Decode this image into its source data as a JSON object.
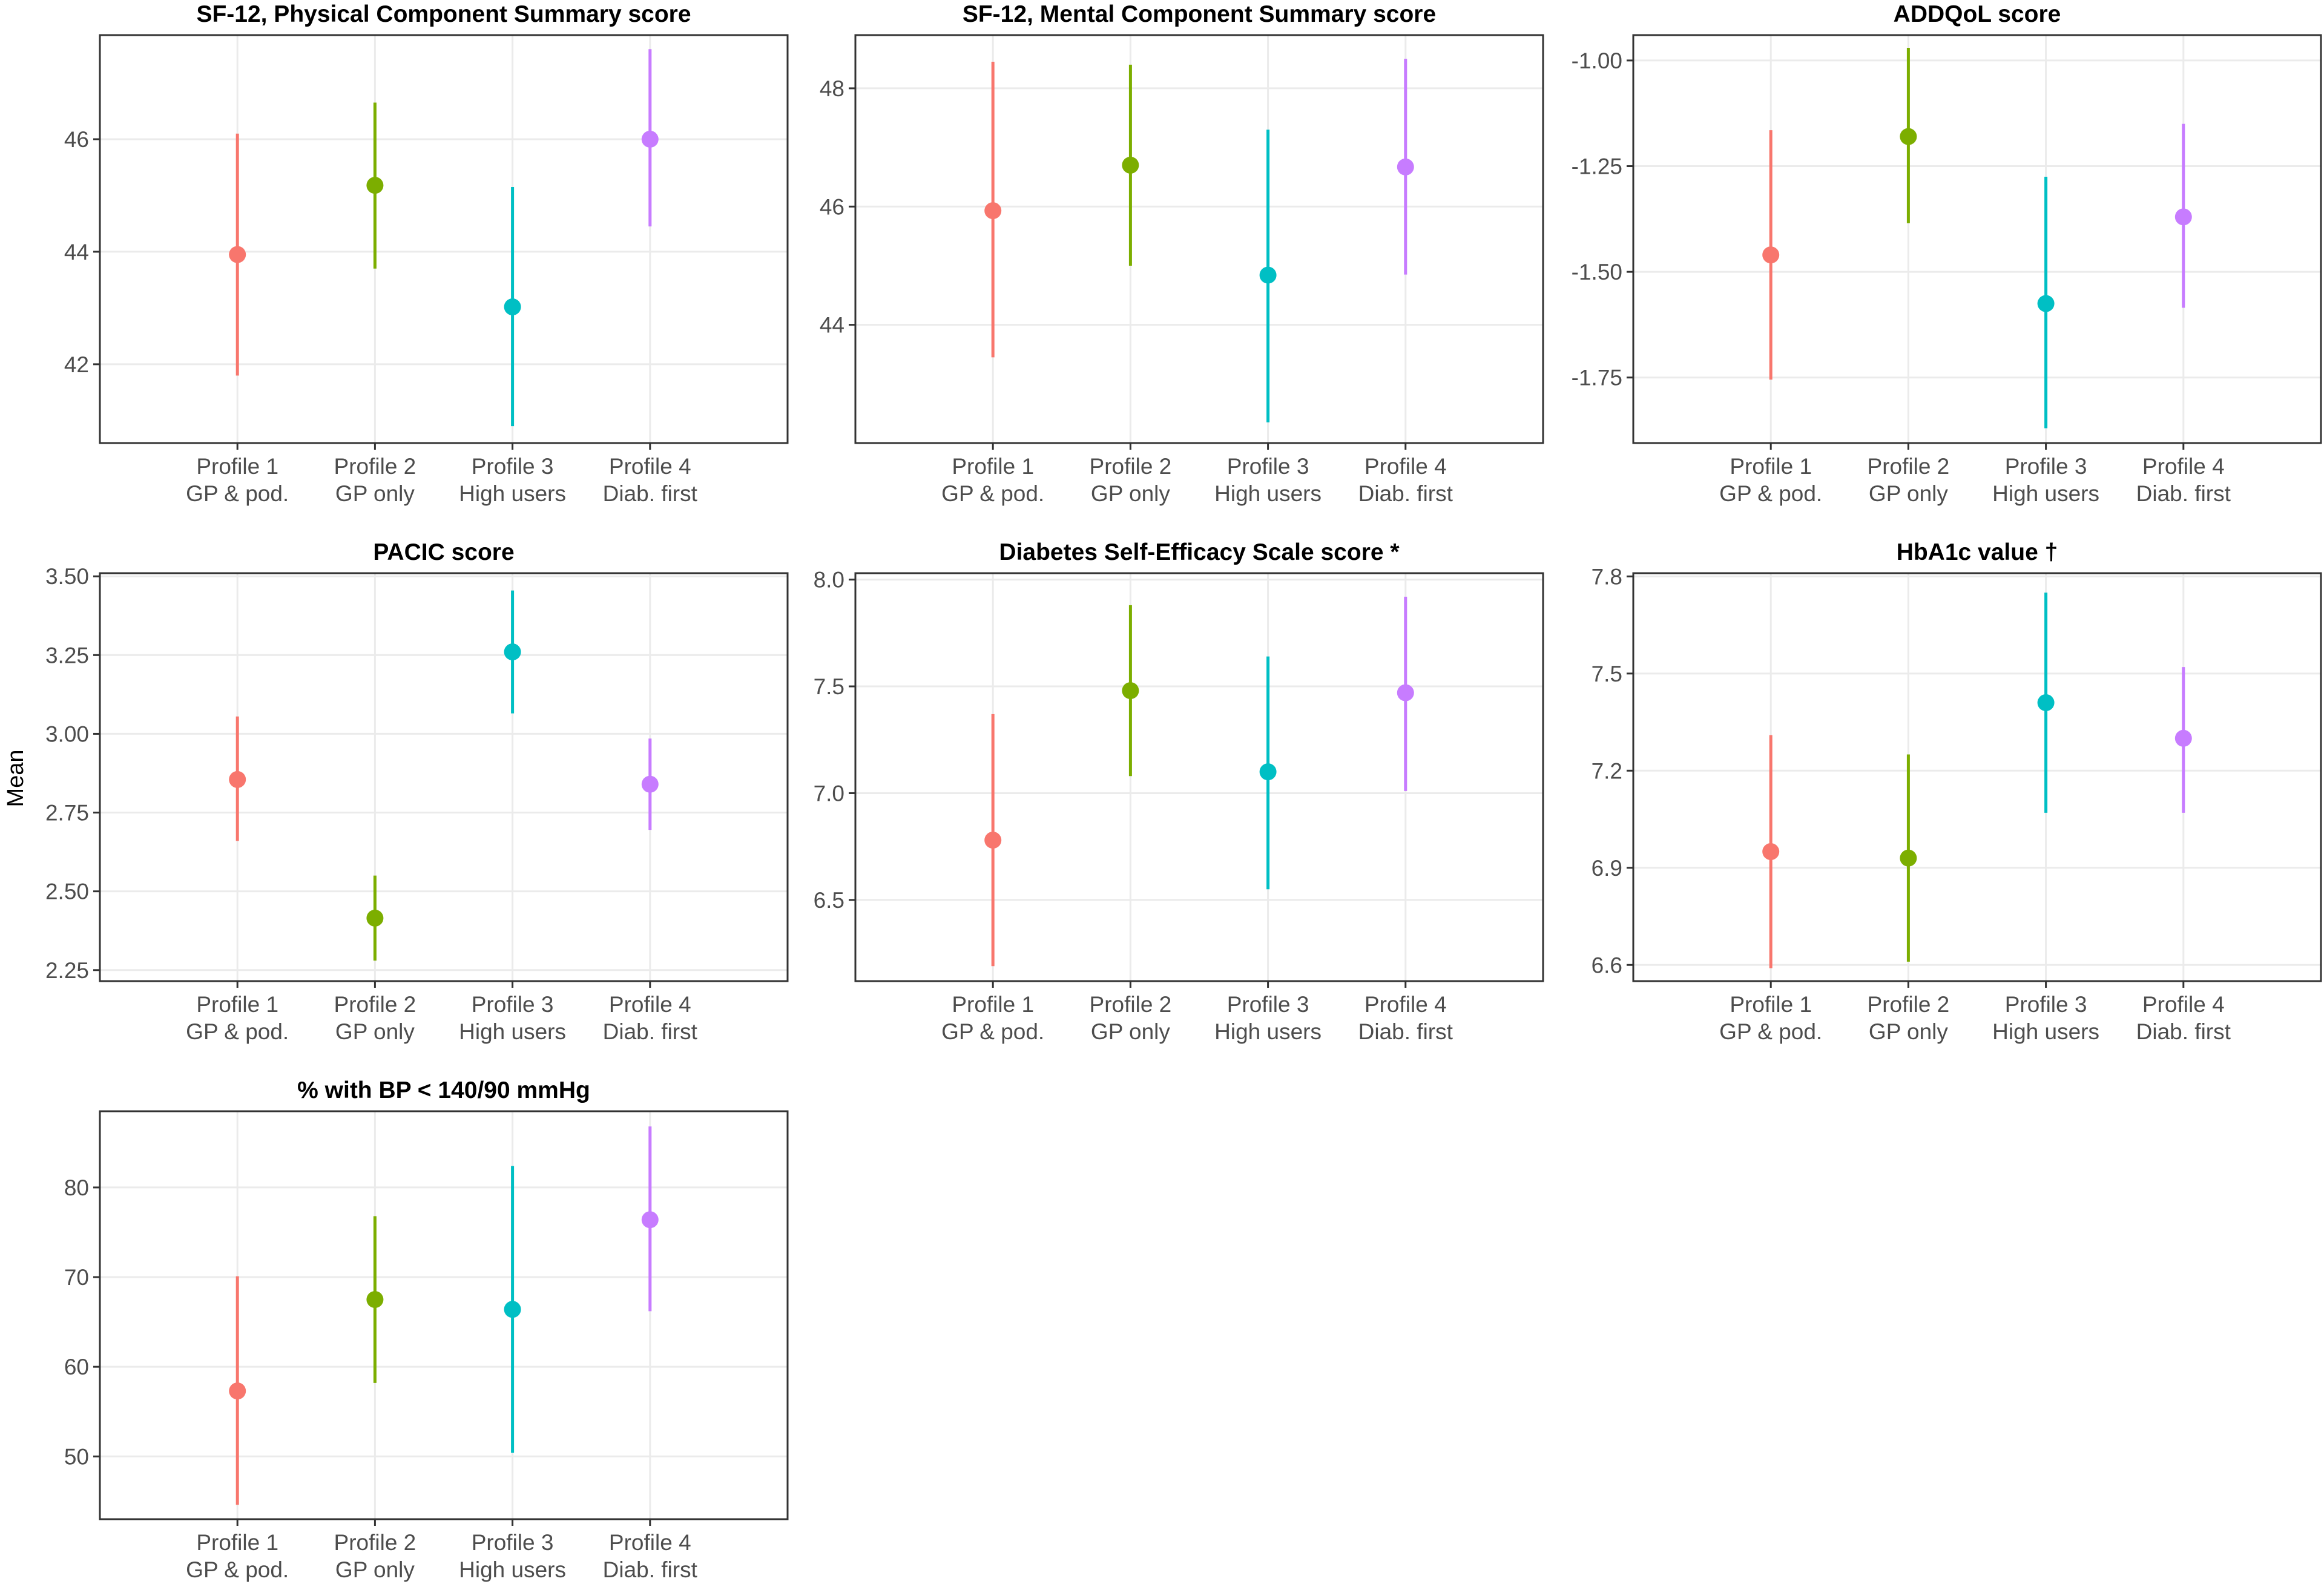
{
  "y_axis_label": "Mean",
  "colors": {
    "Profile 1": "#F8766D",
    "Profile 2": "#7CAE00",
    "Profile 3": "#00BFC4",
    "Profile 4": "#C77CFF"
  },
  "chart_data": [
    {
      "type": "scatter",
      "title": "SF-12, Physical Component Summary score",
      "categories": [
        [
          "Profile 1",
          "GP & pod."
        ],
        [
          "Profile 2",
          "GP only"
        ],
        [
          "Profile 3",
          "High users"
        ],
        [
          "Profile 4",
          "Diab. first"
        ]
      ],
      "series": [
        {
          "name": "Mean",
          "values": [
            43.95,
            45.18,
            43.02,
            46.0
          ]
        }
      ],
      "ci_low": [
        41.8,
        43.7,
        40.9,
        44.45
      ],
      "ci_high": [
        46.1,
        46.65,
        45.15,
        47.6
      ],
      "ylim": [
        40.6,
        47.85
      ],
      "yticks": [
        42,
        44,
        46
      ],
      "tick_labels": [
        "42",
        "44",
        "46"
      ]
    },
    {
      "type": "scatter",
      "title": "SF-12, Mental Component Summary score",
      "categories": [
        [
          "Profile 1",
          "GP & pod."
        ],
        [
          "Profile 2",
          "GP only"
        ],
        [
          "Profile 3",
          "High users"
        ],
        [
          "Profile 4",
          "Diab. first"
        ]
      ],
      "series": [
        {
          "name": "Mean",
          "values": [
            45.93,
            46.7,
            44.84,
            46.67
          ]
        }
      ],
      "ci_low": [
        43.45,
        45.0,
        42.35,
        44.85
      ],
      "ci_high": [
        48.45,
        48.4,
        47.3,
        48.5
      ],
      "ylim": [
        42.0,
        48.9
      ],
      "yticks": [
        44,
        46,
        48
      ],
      "tick_labels": [
        "44",
        "46",
        "48"
      ]
    },
    {
      "type": "scatter",
      "title": "ADDQoL score",
      "categories": [
        [
          "Profile 1",
          "GP & pod."
        ],
        [
          "Profile 2",
          "GP only"
        ],
        [
          "Profile 3",
          "High users"
        ],
        [
          "Profile 4",
          "Diab. first"
        ]
      ],
      "series": [
        {
          "name": "Mean",
          "values": [
            -1.46,
            -1.18,
            -1.575,
            -1.37
          ]
        }
      ],
      "ci_low": [
        -1.755,
        -1.385,
        -1.87,
        -1.585
      ],
      "ci_high": [
        -1.165,
        -0.97,
        -1.275,
        -1.15
      ],
      "ylim": [
        -1.905,
        -0.94
      ],
      "yticks": [
        -1.75,
        -1.5,
        -1.25,
        -1.0
      ],
      "tick_labels": [
        "-1.75",
        "-1.50",
        "-1.25",
        "-1.00"
      ]
    },
    {
      "type": "scatter",
      "title": "PACIC score",
      "categories": [
        [
          "Profile 1",
          "GP & pod."
        ],
        [
          "Profile 2",
          "GP only"
        ],
        [
          "Profile 3",
          "High users"
        ],
        [
          "Profile 4",
          "Diab. first"
        ]
      ],
      "series": [
        {
          "name": "Mean",
          "values": [
            2.855,
            2.415,
            3.26,
            2.84
          ]
        }
      ],
      "ci_low": [
        2.66,
        2.28,
        3.065,
        2.695
      ],
      "ci_high": [
        3.055,
        2.55,
        3.455,
        2.985
      ],
      "ylim": [
        2.215,
        3.51
      ],
      "yticks": [
        2.25,
        2.5,
        2.75,
        3.0,
        3.25,
        3.5
      ],
      "tick_labels": [
        "2.25",
        "2.50",
        "2.75",
        "3.00",
        "3.25",
        "3.50"
      ]
    },
    {
      "type": "scatter",
      "title": "Diabetes Self-Efficacy Scale score *",
      "categories": [
        [
          "Profile 1",
          "GP & pod."
        ],
        [
          "Profile 2",
          "GP only"
        ],
        [
          "Profile 3",
          "High users"
        ],
        [
          "Profile 4",
          "Diab. first"
        ]
      ],
      "series": [
        {
          "name": "Mean",
          "values": [
            6.78,
            7.48,
            7.1,
            7.47
          ]
        }
      ],
      "ci_low": [
        6.19,
        7.08,
        6.55,
        7.01
      ],
      "ci_high": [
        7.37,
        7.88,
        7.64,
        7.92
      ],
      "ylim": [
        6.12,
        8.03
      ],
      "yticks": [
        6.5,
        7.0,
        7.5,
        8.0
      ],
      "tick_labels": [
        "6.5",
        "7.0",
        "7.5",
        "8.0"
      ]
    },
    {
      "type": "scatter",
      "title": "HbA1c value †",
      "categories": [
        [
          "Profile 1",
          "GP & pod."
        ],
        [
          "Profile 2",
          "GP only"
        ],
        [
          "Profile 3",
          "High users"
        ],
        [
          "Profile 4",
          "Diab. first"
        ]
      ],
      "series": [
        {
          "name": "Mean",
          "values": [
            6.95,
            6.93,
            7.41,
            7.3
          ]
        }
      ],
      "ci_low": [
        6.59,
        6.61,
        7.07,
        7.07
      ],
      "ci_high": [
        7.31,
        7.25,
        7.75,
        7.52
      ],
      "ylim": [
        6.55,
        7.81
      ],
      "yticks": [
        6.6,
        6.9,
        7.2,
        7.5,
        7.8
      ],
      "tick_labels": [
        "6.6",
        "6.9",
        "7.2",
        "7.5",
        "7.8"
      ]
    },
    {
      "type": "scatter",
      "title": "% with BP < 140/90 mmHg",
      "categories": [
        [
          "Profile 1",
          "GP & pod."
        ],
        [
          "Profile 2",
          "GP only"
        ],
        [
          "Profile 3",
          "High users"
        ],
        [
          "Profile 4",
          "Diab. first"
        ]
      ],
      "series": [
        {
          "name": "Mean",
          "values": [
            57.3,
            67.5,
            66.4,
            76.4
          ]
        }
      ],
      "ci_low": [
        44.6,
        58.2,
        50.4,
        66.2
      ],
      "ci_high": [
        70.1,
        76.8,
        82.4,
        86.8
      ],
      "ylim": [
        43.0,
        88.5
      ],
      "yticks": [
        50,
        60,
        70,
        80
      ],
      "tick_labels": [
        "50",
        "60",
        "70",
        "80"
      ]
    }
  ]
}
